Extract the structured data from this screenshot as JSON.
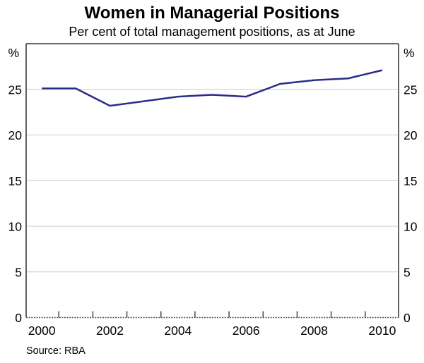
{
  "chart_data": {
    "type": "line",
    "title": "Women in Managerial Positions",
    "subtitle": "Per cent of total management positions, as at June",
    "source": "Source: RBA",
    "unit_label_left": "%",
    "unit_label_right": "%",
    "x": [
      2000,
      2001,
      2002,
      2003,
      2004,
      2005,
      2006,
      2007,
      2008,
      2009,
      2010
    ],
    "series": [
      {
        "name": "Women in managerial positions",
        "values": [
          25.1,
          25.1,
          23.2,
          23.7,
          24.2,
          24.4,
          24.2,
          25.6,
          26.0,
          26.2,
          27.1
        ]
      }
    ],
    "ylim": [
      0,
      30
    ],
    "y_ticks": [
      0,
      5,
      10,
      15,
      20,
      25
    ],
    "y_labels_both_sides": true,
    "x_ticklabels": [
      2000,
      2002,
      2004,
      2006,
      2008,
      2010
    ],
    "xlim": [
      1999.54,
      2010.48
    ],
    "grid": true,
    "legend": "none",
    "colors": {
      "line": "#2b2b8c",
      "grid": "#c9c9c9",
      "frame": "#3b3b3b",
      "text": "#000000"
    }
  }
}
